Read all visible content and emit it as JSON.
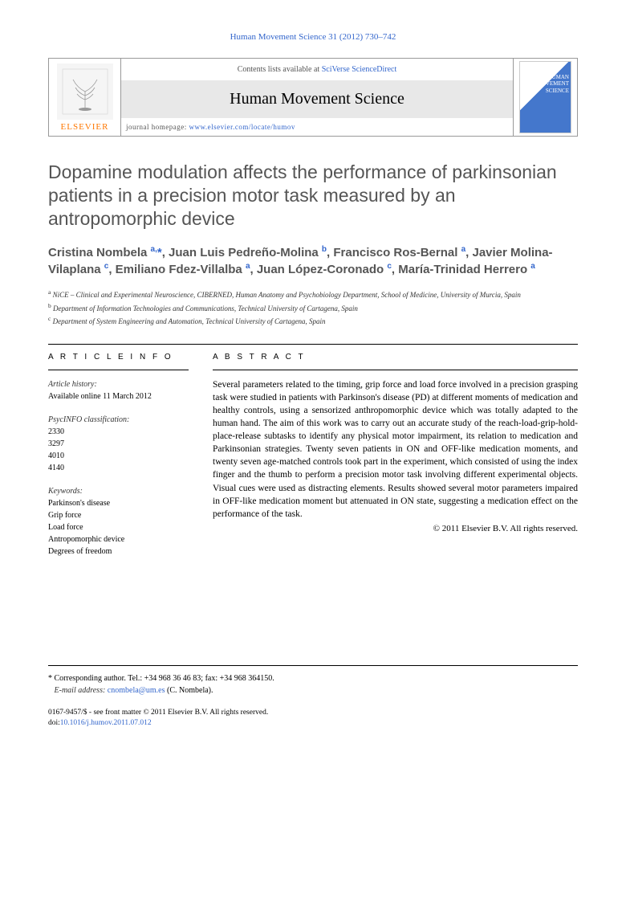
{
  "journal_reference": "Human Movement Science 31 (2012) 730–742",
  "header": {
    "contents_prefix": "Contents lists available at ",
    "contents_link": "SciVerse ScienceDirect",
    "journal_name": "Human Movement Science",
    "homepage_prefix": "journal homepage: ",
    "homepage_url": "www.elsevier.com/locate/humov",
    "publisher": "ELSEVIER",
    "cover_text": "HUMAN MOVEMENT SCIENCE"
  },
  "article": {
    "title": "Dopamine modulation affects the performance of parkinsonian patients in a precision motor task measured by an antropomorphic device",
    "authors_html": "Cristina Nombela <sup>a,</sup><span class='corr'>*</span>, Juan Luis Pedreño-Molina <sup>b</sup>, Francisco Ros-Bernal <sup>a</sup>, Javier Molina-Vilaplana <sup>c</sup>, Emiliano Fdez-Villalba <sup>a</sup>, Juan López-Coronado <sup>c</sup>, María-Trinidad Herrero <sup>a</sup>",
    "affiliations": [
      {
        "sup": "a",
        "text": "NiCE – Clinical and Experimental Neuroscience, CIBERNED, Human Anatomy and Psychobiology Department, School of Medicine, University of Murcia, Spain"
      },
      {
        "sup": "b",
        "text": "Department of Information Technologies and Communications, Technical University of Cartagena, Spain"
      },
      {
        "sup": "c",
        "text": "Department of System Engineering and Automation, Technical University of Cartagena, Spain"
      }
    ]
  },
  "info": {
    "heading": "A R T I C L E   I N F O",
    "history_label": "Article history:",
    "history_text": "Available online 11 March 2012",
    "psyc_label": "PsycINFO classification:",
    "psyc_codes": [
      "2330",
      "3297",
      "4010",
      "4140"
    ],
    "keywords_label": "Keywords:",
    "keywords": [
      "Parkinson's disease",
      "Grip force",
      "Load force",
      "Antropomorphic device",
      "Degrees of freedom"
    ]
  },
  "abstract": {
    "heading": "A B S T R A C T",
    "text": "Several parameters related to the timing, grip force and load force involved in a precision grasping task were studied in patients with Parkinson's disease (PD) at different moments of medication and healthy controls, using a sensorized anthropomorphic device which was totally adapted to the human hand. The aim of this work was to carry out an accurate study of the reach-load-grip-hold-place-release subtasks to identify any physical motor impairment, its relation to medication and Parkinsonian strategies. Twenty seven patients in ON and OFF-like medication moments, and twenty seven age-matched controls took part in the experiment, which consisted of using the index finger and the thumb to perform a precision motor task involving different experimental objects. Visual cues were used as distracting elements. Results showed several motor parameters impaired in OFF-like medication moment but attenuated in ON state, suggesting a medication effect on the performance of the task.",
    "copyright": "© 2011 Elsevier B.V. All rights reserved."
  },
  "footer": {
    "corr_label": "* Corresponding author. Tel.: +34 968 36 46 83; fax: +34 968 364150.",
    "email_label": "E-mail address:",
    "email": "cnombela@um.es",
    "email_author": "(C. Nombela).",
    "issn_line": "0167-9457/$ - see front matter © 2011 Elsevier B.V. All rights reserved.",
    "doi_label": "doi:",
    "doi": "10.1016/j.humov.2011.07.012"
  },
  "colors": {
    "link": "#3366cc",
    "title_gray": "#555555",
    "publisher_orange": "#ff7700",
    "banner_gray": "#e8e8e8"
  }
}
